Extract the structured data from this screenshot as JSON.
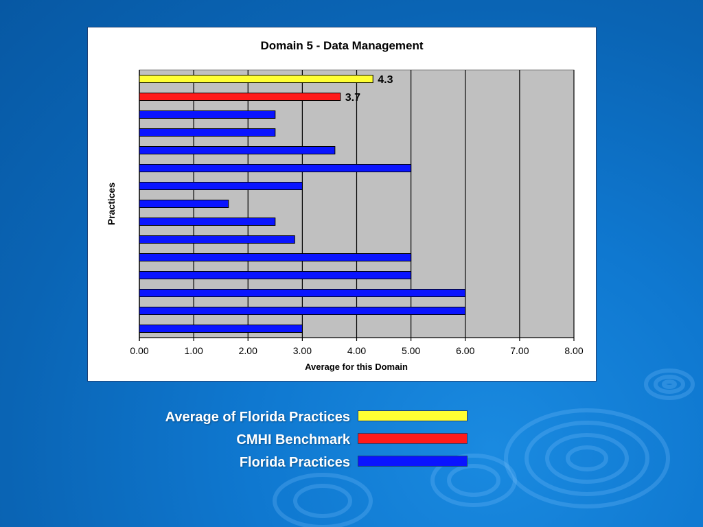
{
  "colors": {
    "average": "#ffff33",
    "benchmark": "#ff1a1a",
    "practice": "#0a14ff",
    "plot_bg": "#c0c0c0",
    "grid": "#000000"
  },
  "chart_data": {
    "type": "bar",
    "orientation": "horizontal",
    "title": "Domain 5 - Data Management",
    "xlabel": "Average for this Domain",
    "ylabel": "Practices",
    "xlim": [
      0,
      8
    ],
    "x_ticks": [
      "0.00",
      "1.00",
      "2.00",
      "3.00",
      "4.00",
      "5.00",
      "6.00",
      "7.00",
      "8.00"
    ],
    "grid": true,
    "bars": [
      {
        "value": 4.3,
        "kind": "average",
        "label": "4.3"
      },
      {
        "value": 3.7,
        "kind": "benchmark",
        "label": "3.7"
      },
      {
        "value": 2.5,
        "kind": "practice"
      },
      {
        "value": 2.5,
        "kind": "practice"
      },
      {
        "value": 3.6,
        "kind": "practice"
      },
      {
        "value": 5.0,
        "kind": "practice"
      },
      {
        "value": 3.0,
        "kind": "practice"
      },
      {
        "value": 1.64,
        "kind": "practice"
      },
      {
        "value": 2.5,
        "kind": "practice"
      },
      {
        "value": 2.86,
        "kind": "practice"
      },
      {
        "value": 5.0,
        "kind": "practice"
      },
      {
        "value": 5.0,
        "kind": "practice"
      },
      {
        "value": 6.0,
        "kind": "practice"
      },
      {
        "value": 6.0,
        "kind": "practice"
      },
      {
        "value": 3.0,
        "kind": "practice"
      }
    ]
  },
  "legend": {
    "placement": "below chart",
    "items": [
      {
        "label": "Average of Florida Practices",
        "kind": "average"
      },
      {
        "label": "CMHI Benchmark",
        "kind": "benchmark"
      },
      {
        "label": "Florida Practices",
        "kind": "practice"
      }
    ]
  }
}
